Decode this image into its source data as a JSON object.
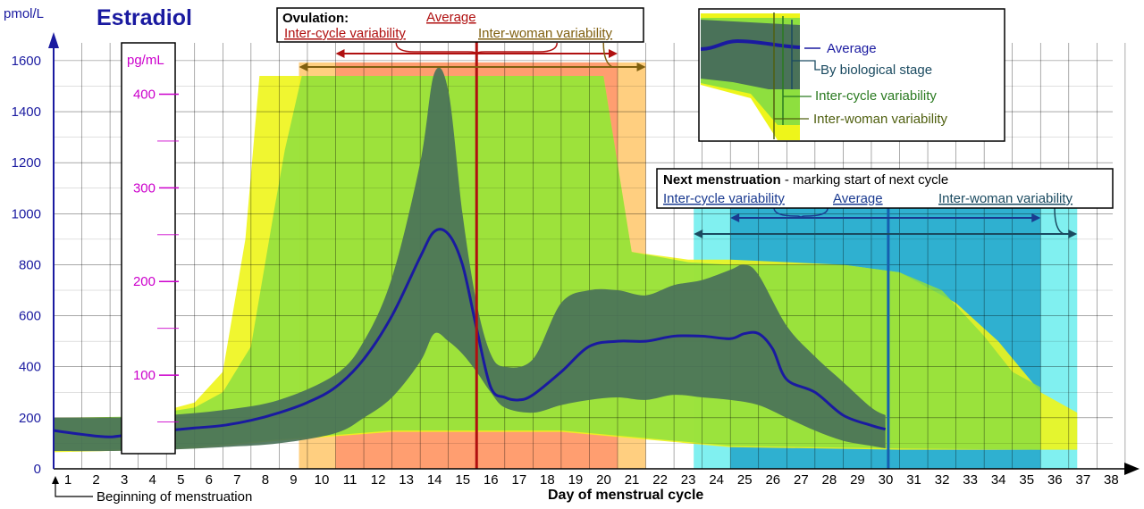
{
  "chart_data": {
    "type": "area",
    "title": "Estradiol",
    "ylabel": "pmol/L",
    "ylabel2": "pg/mL",
    "xlabel": "Day of menstrual cycle",
    "ylim": [
      0,
      1600
    ],
    "xlim": [
      0,
      38
    ],
    "y_ticks": [
      0,
      200,
      400,
      600,
      800,
      1000,
      1200,
      1400,
      1600
    ],
    "y2_ticks": [
      100,
      200,
      300,
      400
    ],
    "x_ticks": [
      1,
      2,
      3,
      4,
      5,
      6,
      7,
      8,
      9,
      10,
      11,
      12,
      13,
      14,
      15,
      16,
      17,
      18,
      19,
      20,
      21,
      22,
      23,
      24,
      25,
      26,
      27,
      28,
      29,
      30,
      31,
      32,
      33,
      34,
      35,
      36,
      37,
      38
    ],
    "grid": true,
    "colors": {
      "average": "#1a1aa0",
      "inter_woman": "#eef51a",
      "inter_cycle": "#8edf3f",
      "biological_stage": "#4a7259",
      "ovulation_inter_woman": "#ffcf80",
      "ovulation_inter_cycle": "#ff9e70",
      "menstruation_inter_woman": "#80f0f0",
      "menstruation_inter_cycle": "#2fb0d0",
      "ovulation_line": "#b01010",
      "menstruation_line": "#1560b0",
      "axis": "#1a1aa0",
      "pgml": "#cc00cc"
    },
    "series": [
      {
        "name": "Average",
        "x": [
          0,
          1,
          2,
          3,
          4,
          5,
          6,
          7,
          8,
          9,
          10,
          11,
          12,
          13,
          13.5,
          14,
          14.5,
          15,
          15.5,
          16,
          16.5,
          17,
          18,
          19,
          20,
          21,
          22,
          23,
          24,
          24.5,
          25,
          25.5,
          26,
          27,
          28,
          29,
          29.5
        ],
        "values": [
          150,
          135,
          125,
          140,
          150,
          160,
          170,
          190,
          220,
          260,
          320,
          430,
          600,
          830,
          930,
          920,
          800,
          550,
          320,
          280,
          270,
          290,
          380,
          480,
          500,
          500,
          520,
          520,
          510,
          530,
          530,
          470,
          350,
          300,
          210,
          170,
          155
        ]
      },
      {
        "name": "Biological stage upper",
        "x": [
          0,
          2,
          4,
          6,
          8,
          10,
          11,
          12,
          13,
          13.5,
          14,
          14.5,
          15,
          15.5,
          16,
          17,
          18,
          19,
          20,
          21,
          22,
          23,
          24,
          24.5,
          25,
          26,
          27,
          28,
          29,
          29.5
        ],
        "values": [
          200,
          200,
          210,
          230,
          270,
          370,
          500,
          750,
          1200,
          1550,
          1480,
          1000,
          650,
          450,
          400,
          430,
          650,
          700,
          700,
          680,
          720,
          740,
          780,
          800,
          760,
          560,
          440,
          340,
          240,
          210
        ]
      },
      {
        "name": "Biological stage lower",
        "x": [
          0,
          2,
          4,
          6,
          8,
          10,
          11,
          12,
          13,
          13.5,
          14,
          14.5,
          15,
          15.5,
          16,
          17,
          18,
          19,
          20,
          21,
          22,
          23,
          24,
          25,
          26,
          27,
          28,
          29,
          29.5
        ],
        "values": [
          70,
          70,
          75,
          85,
          100,
          140,
          200,
          280,
          420,
          530,
          500,
          450,
          380,
          300,
          240,
          220,
          250,
          270,
          280,
          270,
          290,
          280,
          270,
          250,
          200,
          150,
          110,
          90,
          80
        ]
      }
    ],
    "ovulation": {
      "average_day": 15,
      "inter_cycle_range": [
        10,
        20
      ],
      "inter_woman_range": [
        8.7,
        21
      ]
    },
    "next_menstruation": {
      "average_day": 29.6,
      "inter_cycle_range": [
        24,
        35
      ],
      "inter_woman_range": [
        22.7,
        36.3
      ]
    }
  },
  "labels": {
    "title": "Estradiol",
    "y_unit": "pmol/L",
    "y2_unit": "pg/mL",
    "x_title": "Day of menstrual cycle",
    "beginning": "Beginning of menstruation",
    "ovulation_title": "Ovulation:",
    "ovulation_average": "Average",
    "ovulation_inter_cycle": "Inter-cycle variability",
    "ovulation_inter_woman": "Inter-woman variability",
    "menstruation_title": "Next menstruation",
    "menstruation_desc": " - marking start of next cycle",
    "menstruation_inter_cycle": "Inter-cycle variability",
    "menstruation_average": "Average",
    "menstruation_inter_woman": "Inter-woman variability",
    "legend_average": "Average",
    "legend_stage": "By biological stage",
    "legend_inter_cycle": "Inter-cycle variability",
    "legend_inter_woman": "Inter-woman variability"
  }
}
